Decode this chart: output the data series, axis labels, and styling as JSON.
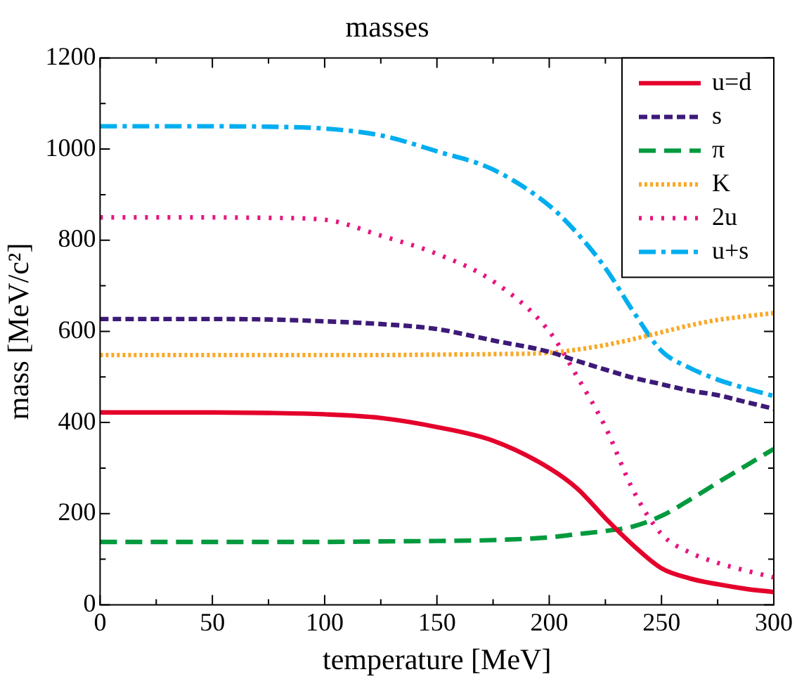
{
  "chart_data": {
    "type": "line",
    "title": "masses",
    "xlabel": "temperature [MeV]",
    "ylabel": "mass [MeV/c²]",
    "x": [
      0,
      25,
      50,
      75,
      100,
      125,
      150,
      175,
      200,
      212.5,
      225,
      237.5,
      250,
      262.5,
      275,
      287.5,
      300
    ],
    "xlim": [
      0,
      300
    ],
    "xticks": [
      0,
      {
        "value": 25,
        "label": null
      },
      50,
      {
        "value": 75,
        "label": null
      },
      100,
      {
        "value": 125,
        "label": null
      },
      150,
      {
        "value": 175,
        "label": null
      },
      200,
      {
        "value": 225,
        "label": null
      },
      250,
      {
        "value": 275,
        "label": null
      },
      300
    ],
    "ylim": [
      0,
      1200
    ],
    "yticks": [
      0,
      {
        "value": 100,
        "label": null
      },
      200,
      {
        "value": 300,
        "label": null
      },
      400,
      {
        "value": 500,
        "label": null
      },
      600,
      {
        "value": 700,
        "label": null
      },
      800,
      {
        "value": 900,
        "label": null
      },
      1000,
      {
        "value": 1100,
        "label": null
      },
      1200
    ],
    "grid": false,
    "legend": "top right",
    "marker": "none",
    "series": [
      {
        "name": "u=d",
        "color": "#e4002b",
        "line_style": "solid",
        "values": [
          422,
          422,
          422,
          421,
          418,
          410,
          390,
          360,
          300,
          255,
          190,
          130,
          80,
          58,
          45,
          35,
          28
        ]
      },
      {
        "name": "s",
        "color": "#3d1a78",
        "line_style": "dashed",
        "values": [
          627,
          627,
          627,
          626,
          622,
          616,
          605,
          580,
          555,
          535,
          516,
          498,
          484,
          470,
          460,
          445,
          430
        ]
      },
      {
        "name": "π",
        "color": "#009a3e",
        "line_style": "dashed",
        "values": [
          138,
          138,
          138,
          138,
          138,
          139,
          140,
          142,
          148,
          155,
          162,
          172,
          195,
          230,
          268,
          305,
          342
        ]
      },
      {
        "name": "K",
        "color": "#f9a825",
        "line_style": "dotted",
        "values": [
          548,
          548,
          548,
          548,
          548,
          548,
          549,
          550,
          553,
          560,
          570,
          583,
          598,
          613,
          625,
          633,
          640
        ]
      },
      {
        "name": "2u",
        "color": "#e6157f",
        "line_style": "dotted",
        "values": [
          850,
          850,
          850,
          849,
          845,
          810,
          770,
          710,
          600,
          500,
          390,
          250,
          155,
          115,
          92,
          75,
          60
        ]
      },
      {
        "name": "u+s",
        "color": "#00aeef",
        "line_style": "dashdot",
        "values": [
          1050,
          1050,
          1050,
          1049,
          1045,
          1030,
          995,
          955,
          876,
          815,
          739,
          643,
          557,
          520,
          494,
          475,
          458
        ]
      }
    ]
  }
}
